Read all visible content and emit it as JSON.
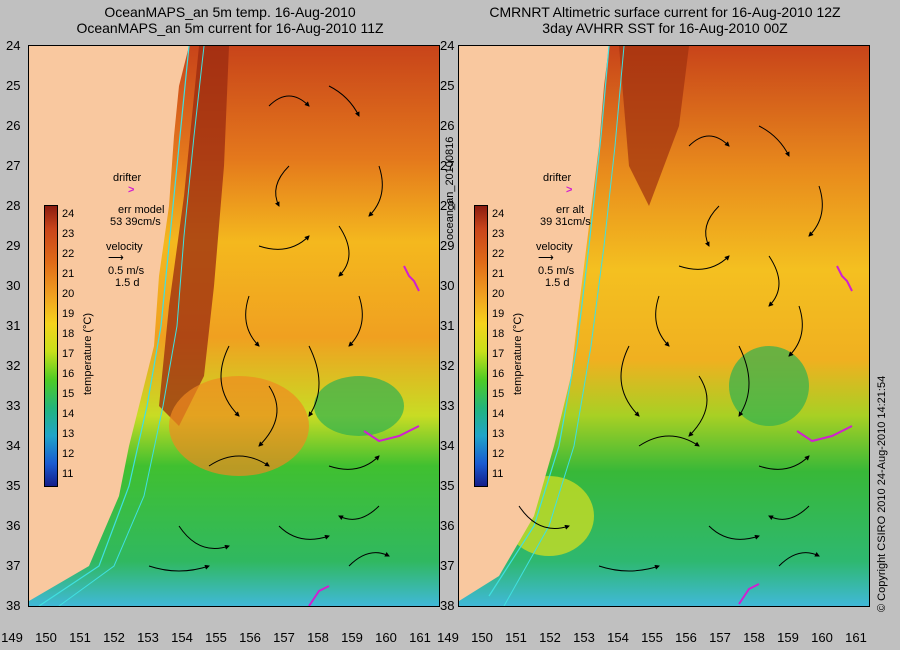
{
  "left_panel": {
    "title_line1": "OceanMAPS_an 5m temp. 16-Aug-2010",
    "title_line2": "OceanMAPS_an 5m current for 16-Aug-2010 11Z",
    "drifter_label": "drifter",
    "err_label": "err model",
    "err_value": "53 39cm/s",
    "velocity_label": "velocity",
    "velocity_scale": "0.5 m/s",
    "velocity_days": "1.5 d"
  },
  "right_panel": {
    "title_line1": "CMRNRT Altimetric surface current for 16-Aug-2010 12Z",
    "title_line2": "3day AVHRR SST for 16-Aug-2010 00Z",
    "drifter_label": "drifter",
    "err_label": "err alt",
    "err_value": "39 31cm/s",
    "velocity_label": "velocity",
    "velocity_scale": "0.5 m/s",
    "velocity_days": "1.5 d"
  },
  "colorbar": {
    "label": "temperature (°C)",
    "ticks": [
      "24",
      "23",
      "22",
      "21",
      "20",
      "19",
      "18",
      "17",
      "16",
      "15",
      "14",
      "13",
      "12",
      "11"
    ]
  },
  "axes": {
    "lat_ticks": [
      "24",
      "25",
      "26",
      "27",
      "28",
      "29",
      "30",
      "31",
      "32",
      "33",
      "34",
      "35",
      "36",
      "37",
      "38"
    ],
    "lon_ticks": [
      "149",
      "150",
      "151",
      "152",
      "153",
      "154",
      "155",
      "156",
      "157",
      "158",
      "159",
      "160",
      "161"
    ]
  },
  "side_label": "ocean_an_20100816",
  "copyright": "© Copyright CSIRO 2010   24-Aug-2010 14:21:54",
  "colors": {
    "land": "#f9c89f",
    "drifter": "#d020d0",
    "contour": "#40e0e0",
    "arrow": "#000000"
  }
}
